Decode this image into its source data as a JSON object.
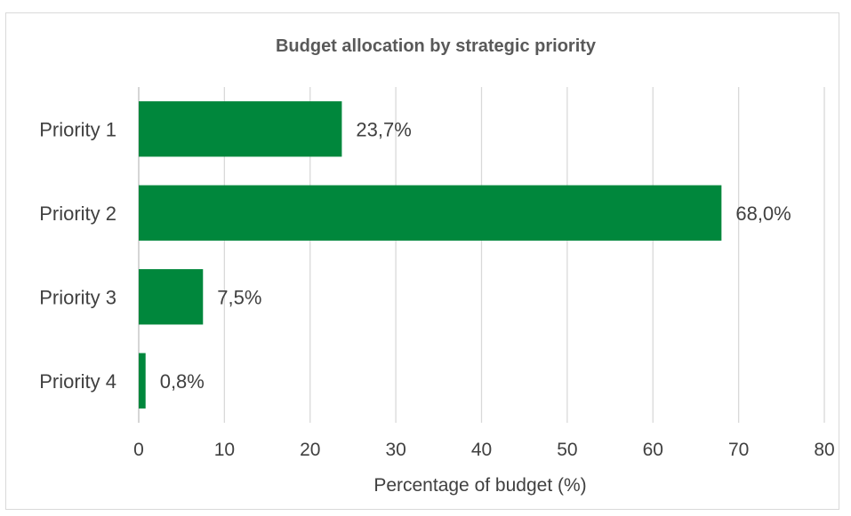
{
  "chart_data": {
    "type": "bar",
    "orientation": "horizontal",
    "title": "Budget allocation by strategic priority",
    "xlabel": "Percentage of budget (%)",
    "ylabel": "",
    "categories": [
      "Priority 1",
      "Priority 2",
      "Priority 3",
      "Priority 4"
    ],
    "values": [
      23.7,
      68.0,
      7.5,
      0.8
    ],
    "data_labels": [
      "23,7%",
      "68,0%",
      "7,5%",
      "0,8%"
    ],
    "xlim": [
      0,
      80
    ],
    "xticks": [
      0,
      10,
      20,
      30,
      40,
      50,
      60,
      70,
      80
    ],
    "grid": "vertical",
    "legend": "none",
    "bar_color": "#00873C"
  }
}
